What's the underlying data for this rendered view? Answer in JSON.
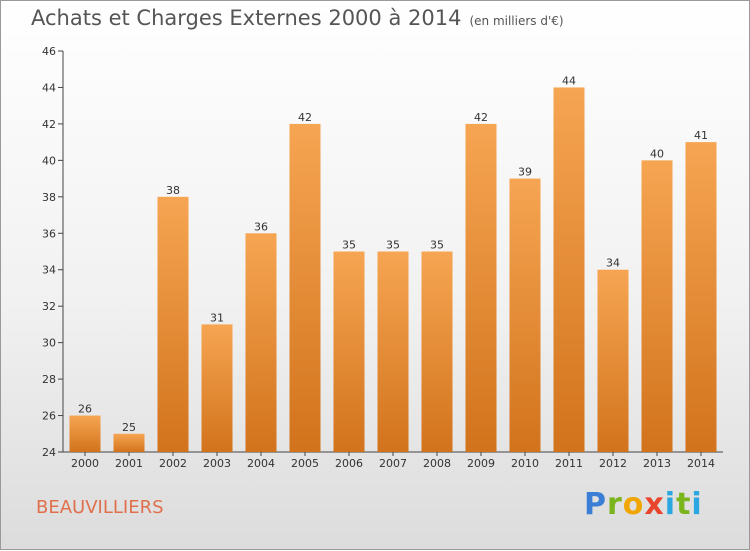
{
  "title": "Achats et Charges Externes 2000 à 2014",
  "subtitle": "(en milliers d'€)",
  "location": "BEAUVILLIERS",
  "logo": {
    "p": "P",
    "r": "r",
    "o": "o",
    "x": "x",
    "i": "i",
    "t": "t",
    "i2": "i"
  },
  "colors": {
    "bar_top": "#f6a552",
    "bar_bottom": "#d2731c",
    "text": "#555555",
    "location": "#e0704c"
  },
  "chart_data": {
    "type": "bar",
    "categories": [
      "2000",
      "2001",
      "2002",
      "2003",
      "2004",
      "2005",
      "2006",
      "2007",
      "2008",
      "2009",
      "2010",
      "2011",
      "2012",
      "2013",
      "2014"
    ],
    "values": [
      26,
      25,
      38,
      31,
      36,
      42,
      35,
      35,
      35,
      42,
      39,
      44,
      34,
      40,
      41
    ],
    "ylim": [
      24,
      46
    ],
    "yticks": [
      24,
      26,
      28,
      30,
      32,
      34,
      36,
      38,
      40,
      42,
      44,
      46
    ],
    "grid": false,
    "legend": "none"
  }
}
